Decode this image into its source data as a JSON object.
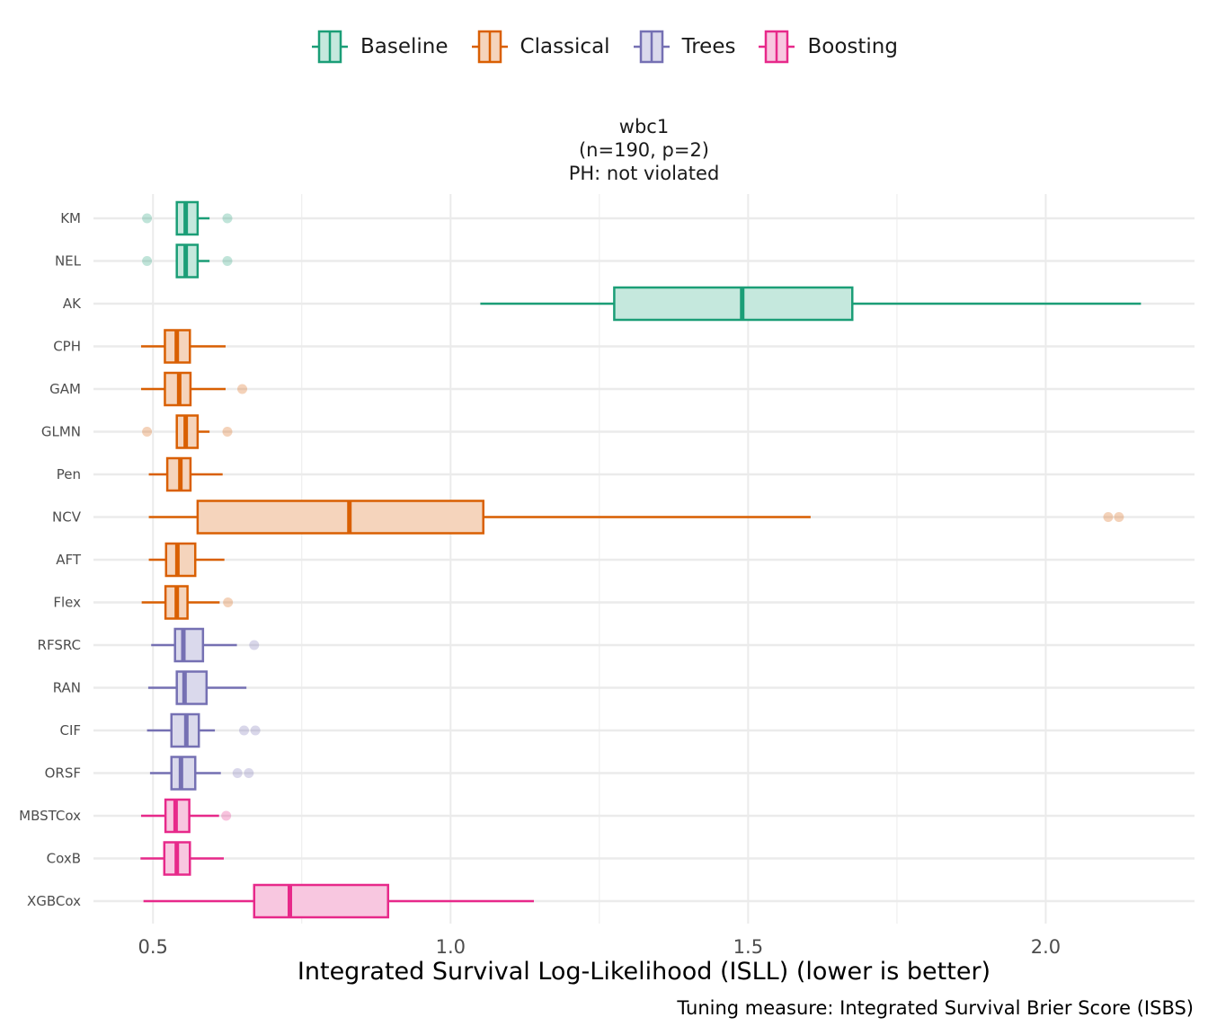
{
  "legend": {
    "items": [
      {
        "label": "Baseline",
        "color": "#1b9e77",
        "fill": "#c5e8dd"
      },
      {
        "label": "Classical",
        "color": "#d95f02",
        "fill": "#f5d4bc"
      },
      {
        "label": "Trees",
        "color": "#7570b3",
        "fill": "#dad9ec"
      },
      {
        "label": "Boosting",
        "color": "#e7298a",
        "fill": "#f8c7e0"
      }
    ]
  },
  "strip": {
    "line1": "wbc1",
    "line2": "(n=190, p=2)",
    "line3": "PH: not violated"
  },
  "caption": "Tuning measure: Integrated Survival Brier Score (ISBS)",
  "chart_data": {
    "type": "boxplot",
    "orientation": "horizontal",
    "xlabel": "Integrated Survival Log-Likelihood (ISLL) (lower is better)",
    "xlim": [
      0.4,
      2.25
    ],
    "xticks": [
      0.5,
      1.0,
      1.5,
      2.0
    ],
    "xtick_labels": [
      "0.5",
      "1.0",
      "1.5",
      "2.0"
    ],
    "grid": true,
    "legend_position": "top",
    "series": [
      {
        "name": "KM",
        "group": "Baseline",
        "whisker_low": 0.54,
        "q1": 0.54,
        "median": 0.555,
        "q3": 0.575,
        "whisker_high": 0.595,
        "outliers": [
          0.49,
          0.625
        ]
      },
      {
        "name": "NEL",
        "group": "Baseline",
        "whisker_low": 0.54,
        "q1": 0.54,
        "median": 0.555,
        "q3": 0.575,
        "whisker_high": 0.595,
        "outliers": [
          0.49,
          0.625
        ]
      },
      {
        "name": "AK",
        "group": "Baseline",
        "whisker_low": 1.05,
        "q1": 1.275,
        "median": 1.49,
        "q3": 1.675,
        "whisker_high": 2.16,
        "outliers": []
      },
      {
        "name": "CPH",
        "group": "Classical",
        "whisker_low": 0.48,
        "q1": 0.52,
        "median": 0.54,
        "q3": 0.562,
        "whisker_high": 0.622,
        "outliers": []
      },
      {
        "name": "GAM",
        "group": "Classical",
        "whisker_low": 0.48,
        "q1": 0.52,
        "median": 0.544,
        "q3": 0.563,
        "whisker_high": 0.622,
        "outliers": [
          0.65
        ]
      },
      {
        "name": "GLMN",
        "group": "Classical",
        "whisker_low": 0.54,
        "q1": 0.54,
        "median": 0.555,
        "q3": 0.575,
        "whisker_high": 0.595,
        "outliers": [
          0.49,
          0.625
        ]
      },
      {
        "name": "Pen",
        "group": "Classical",
        "whisker_low": 0.493,
        "q1": 0.524,
        "median": 0.546,
        "q3": 0.563,
        "whisker_high": 0.617,
        "outliers": []
      },
      {
        "name": "NCV",
        "group": "Classical",
        "whisker_low": 0.493,
        "q1": 0.575,
        "median": 0.83,
        "q3": 1.055,
        "whisker_high": 1.605,
        "outliers": [
          2.105,
          2.123
        ]
      },
      {
        "name": "AFT",
        "group": "Classical",
        "whisker_low": 0.493,
        "q1": 0.522,
        "median": 0.541,
        "q3": 0.571,
        "whisker_high": 0.62,
        "outliers": []
      },
      {
        "name": "Flex",
        "group": "Classical",
        "whisker_low": 0.481,
        "q1": 0.521,
        "median": 0.54,
        "q3": 0.558,
        "whisker_high": 0.612,
        "outliers": [
          0.626
        ]
      },
      {
        "name": "RFSRC",
        "group": "Trees",
        "whisker_low": 0.497,
        "q1": 0.537,
        "median": 0.551,
        "q3": 0.584,
        "whisker_high": 0.641,
        "outliers": [
          0.67
        ]
      },
      {
        "name": "RAN",
        "group": "Trees",
        "whisker_low": 0.492,
        "q1": 0.54,
        "median": 0.553,
        "q3": 0.59,
        "whisker_high": 0.657,
        "outliers": []
      },
      {
        "name": "CIF",
        "group": "Trees",
        "whisker_low": 0.49,
        "q1": 0.531,
        "median": 0.556,
        "q3": 0.577,
        "whisker_high": 0.604,
        "outliers": [
          0.653,
          0.672
        ]
      },
      {
        "name": "ORSF",
        "group": "Trees",
        "whisker_low": 0.495,
        "q1": 0.531,
        "median": 0.547,
        "q3": 0.571,
        "whisker_high": 0.614,
        "outliers": [
          0.642,
          0.661
        ]
      },
      {
        "name": "MBSTCox",
        "group": "Boosting",
        "whisker_low": 0.48,
        "q1": 0.521,
        "median": 0.538,
        "q3": 0.561,
        "whisker_high": 0.611,
        "outliers": [
          0.623
        ]
      },
      {
        "name": "CoxB",
        "group": "Boosting",
        "whisker_low": 0.479,
        "q1": 0.519,
        "median": 0.54,
        "q3": 0.562,
        "whisker_high": 0.619,
        "outliers": []
      },
      {
        "name": "XGBCox",
        "group": "Boosting",
        "whisker_low": 0.484,
        "q1": 0.67,
        "median": 0.73,
        "q3": 0.895,
        "whisker_high": 1.14,
        "outliers": []
      }
    ]
  }
}
